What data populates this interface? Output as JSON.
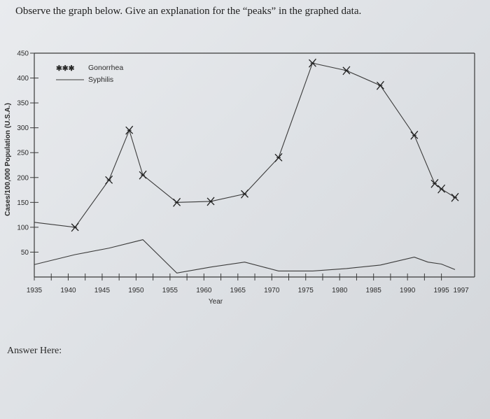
{
  "question": "Observe the graph below. Give an explanation for the “peaks” in the graphed data.",
  "answer_label": "Answer Here:",
  "chart_data": {
    "type": "line",
    "title": "",
    "xlabel": "Year",
    "ylabel": "Cases/100,000 Population (U.S.A.)",
    "xlim": [
      1935,
      1997
    ],
    "ylim": [
      0,
      450
    ],
    "x_tick_labels": [
      "1935",
      "1940",
      "1945",
      "1950",
      "1955",
      "1960",
      "1965",
      "1970",
      "1975",
      "1980",
      "1985",
      "1990",
      "1995",
      "1997"
    ],
    "x_tick_values": [
      1935,
      1940,
      1945,
      1950,
      1955,
      1960,
      1965,
      1970,
      1975,
      1980,
      1985,
      1990,
      1995,
      1997
    ],
    "y_ticks": [
      50,
      100,
      150,
      200,
      250,
      300,
      350,
      400,
      450
    ],
    "y_tick_labels": [
      "50",
      "100",
      "150",
      "200",
      "250",
      "300",
      "350",
      "400",
      "450"
    ],
    "grid": false,
    "legend": "top-left",
    "legend_entries": [
      {
        "name": "Gonorrhea",
        "marker": "✱✱✱"
      },
      {
        "name": "Syphilis",
        "marker": "line"
      }
    ],
    "series": [
      {
        "name": "Gonorrhea",
        "marker": "x",
        "points": [
          [
            1935,
            110
          ],
          [
            1941,
            100
          ],
          [
            1946,
            195
          ],
          [
            1949,
            295
          ],
          [
            1951,
            205
          ],
          [
            1956,
            150
          ],
          [
            1961,
            152
          ],
          [
            1966,
            167
          ],
          [
            1971,
            240
          ],
          [
            1976,
            430
          ],
          [
            1981,
            415
          ],
          [
            1986,
            385
          ],
          [
            1991,
            285
          ],
          [
            1994,
            188
          ],
          [
            1995,
            177
          ],
          [
            1997,
            160
          ]
        ]
      },
      {
        "name": "Syphilis",
        "marker": "none",
        "points": [
          [
            1935,
            25
          ],
          [
            1941,
            45
          ],
          [
            1946,
            58
          ],
          [
            1951,
            75
          ],
          [
            1956,
            8
          ],
          [
            1961,
            20
          ],
          [
            1966,
            30
          ],
          [
            1971,
            12
          ],
          [
            1976,
            12
          ],
          [
            1981,
            17
          ],
          [
            1986,
            24
          ],
          [
            1991,
            40
          ],
          [
            1993,
            30
          ],
          [
            1995,
            26
          ],
          [
            1997,
            15
          ]
        ]
      }
    ]
  }
}
